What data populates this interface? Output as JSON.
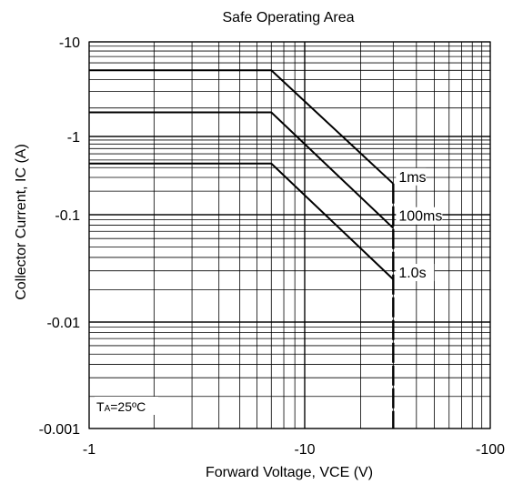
{
  "chart_data": {
    "type": "line",
    "title": "Safe Operating Area",
    "xlabel": "Forward Voltage, VCE (V)",
    "ylabel": "Collector Current, IC (A)",
    "x_scale": "log",
    "y_scale": "log",
    "xlim": [
      -1,
      -100
    ],
    "ylim": [
      -0.001,
      -10
    ],
    "x_ticks": [
      {
        "value": -1,
        "label": "-1"
      },
      {
        "value": -10,
        "label": "-10"
      },
      {
        "value": -100,
        "label": "-100"
      }
    ],
    "y_ticks": [
      {
        "value": -0.001,
        "label": "-0.001"
      },
      {
        "value": -0.01,
        "label": "-0.01"
      },
      {
        "value": -0.1,
        "label": "-0.1"
      },
      {
        "value": -1,
        "label": "-1"
      },
      {
        "value": -10,
        "label": "-10"
      }
    ],
    "grid": true,
    "series": [
      {
        "name": "1ms",
        "points": [
          [
            -1,
            -5.0
          ],
          [
            -7,
            -5.0
          ],
          [
            -30,
            -0.25
          ]
        ]
      },
      {
        "name": "100ms",
        "points": [
          [
            -1,
            -1.8
          ],
          [
            -7,
            -1.8
          ],
          [
            -30,
            -0.075
          ]
        ]
      },
      {
        "name": "1.0s",
        "points": [
          [
            -1,
            -0.45
          ],
          [
            -7,
            -0.45
          ],
          [
            -30,
            -0.025
          ]
        ]
      }
    ],
    "vce_limit": {
      "x": -30,
      "y_top": -0.25,
      "y_bottom": -0.001
    },
    "annotation": {
      "main": "T",
      "sub": "A",
      "rest": "=25ºC"
    },
    "line_color": "#000000",
    "grid_color": "#000000"
  }
}
